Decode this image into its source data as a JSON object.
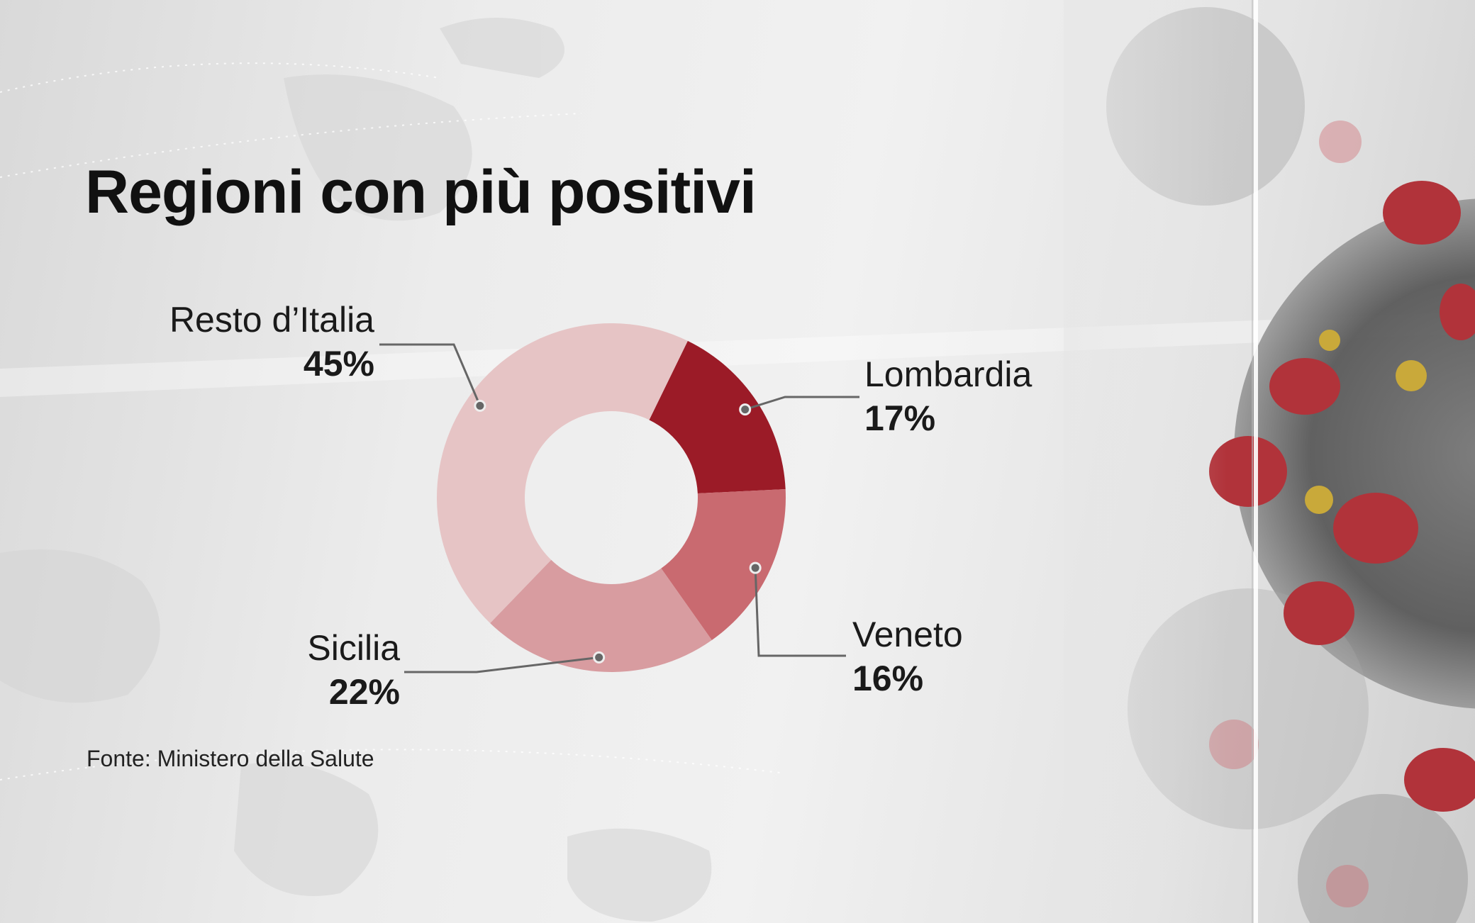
{
  "chart_data": {
    "type": "pie",
    "variant": "donut",
    "title": "Regioni con più positivi",
    "source": "Fonte: Ministero della Salute",
    "slices": [
      {
        "label": "Lombardia",
        "value": 17,
        "display": "17%",
        "color": "#9b1b27"
      },
      {
        "label": "Veneto",
        "value": 16,
        "display": "16%",
        "color": "#c96a70"
      },
      {
        "label": "Sicilia",
        "value": 22,
        "display": "22%",
        "color": "#d89ca0"
      },
      {
        "label": "Resto d’Italia",
        "value": 45,
        "display": "45%",
        "color": "#e6c4c5"
      }
    ]
  }
}
